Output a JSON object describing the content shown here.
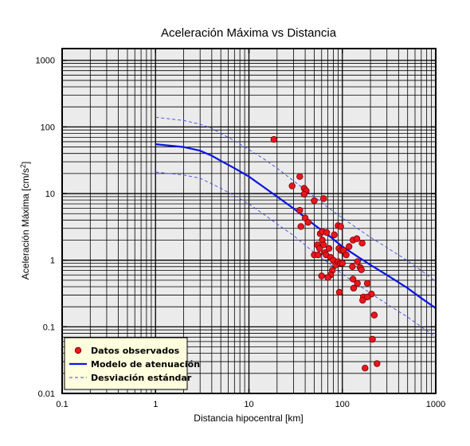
{
  "chart_data": {
    "type": "scatter",
    "title": "Aceleración Máxima vs Distancia",
    "xlabel": "Distancia hipocentral [km]",
    "ylabel_main": "Aceleración Máxima [cm/s",
    "ylabel_sup": "2",
    "ylabel_end": "]",
    "x_scale": "log",
    "y_scale": "log",
    "xlim": [
      0.1,
      1000
    ],
    "ylim": [
      0.01,
      1500
    ],
    "grid": true,
    "x_ticks": [
      {
        "value": 0.1,
        "label": "0.1"
      },
      {
        "value": 1,
        "label": "1"
      },
      {
        "value": 10,
        "label": "10"
      },
      {
        "value": 100,
        "label": "100"
      },
      {
        "value": 1000,
        "label": "1000"
      }
    ],
    "y_ticks": [
      {
        "value": 0.01,
        "label": "0.01"
      },
      {
        "value": 0.1,
        "label": "0.1"
      },
      {
        "value": 1,
        "label": "1"
      },
      {
        "value": 10,
        "label": "10"
      },
      {
        "value": 100,
        "label": "100"
      },
      {
        "value": 1000,
        "label": "1000"
      }
    ],
    "legend_position": "bottom-left",
    "colors": {
      "plot_background": "#ebebeb",
      "legend_background": "#ffffdd",
      "points": "#e8161e",
      "model": "#0a14e6",
      "deviation": "#3a4ae8"
    },
    "series": [
      {
        "name": "Datos observados",
        "kind": "points",
        "points": [
          [
            18.5,
            65
          ],
          [
            29,
            13
          ],
          [
            35,
            18
          ],
          [
            39,
            12
          ],
          [
            41,
            11
          ],
          [
            39,
            9.8
          ],
          [
            40,
            4.3
          ],
          [
            43,
            3.7
          ],
          [
            36,
            3.2
          ],
          [
            35,
            5.6
          ],
          [
            50,
            7.8
          ],
          [
            63,
            8.4
          ],
          [
            58,
            2.5
          ],
          [
            61,
            2.7
          ],
          [
            68,
            2.6
          ],
          [
            61,
            2.0
          ],
          [
            50,
            1.2
          ],
          [
            54,
            1.7
          ],
          [
            57,
            1.5
          ],
          [
            55,
            1.2
          ],
          [
            63,
            1.7
          ],
          [
            65,
            1.3
          ],
          [
            72,
            1.5
          ],
          [
            67,
            1.2
          ],
          [
            75,
            1.1
          ],
          [
            82,
            2.4
          ],
          [
            90,
            3.3
          ],
          [
            96,
            3.2
          ],
          [
            92,
            1.5
          ],
          [
            97,
            1.4
          ],
          [
            103,
            1.4
          ],
          [
            110,
            1.2
          ],
          [
            118,
            1.6
          ],
          [
            130,
            2.0
          ],
          [
            143,
            2.1
          ],
          [
            163,
            1.8
          ],
          [
            80,
            1.0
          ],
          [
            85,
            0.85
          ],
          [
            90,
            0.95
          ],
          [
            95,
            0.9
          ],
          [
            100,
            0.9
          ],
          [
            78,
            0.7
          ],
          [
            75,
            0.6
          ],
          [
            70,
            0.55
          ],
          [
            60,
            0.58
          ],
          [
            128,
            0.8
          ],
          [
            145,
            0.95
          ],
          [
            155,
            0.78
          ],
          [
            160,
            0.72
          ],
          [
            130,
            0.52
          ],
          [
            145,
            0.45
          ],
          [
            132,
            0.38
          ],
          [
            185,
            0.45
          ],
          [
            93,
            0.33
          ],
          [
            205,
            0.31
          ],
          [
            168,
            0.28
          ],
          [
            185,
            0.28
          ],
          [
            165,
            0.25
          ],
          [
            220,
            0.15
          ],
          [
            210,
            0.065
          ],
          [
            235,
            0.028
          ],
          [
            175,
            0.024
          ]
        ]
      },
      {
        "name": "Modelo de atenuación",
        "kind": "line",
        "style": "solid",
        "x": [
          1,
          2,
          3,
          4,
          5,
          7,
          10,
          15,
          20,
          30,
          50,
          70,
          100,
          150,
          200,
          300,
          500,
          700,
          1000
        ],
        "y": [
          55,
          50,
          44,
          37,
          31,
          24,
          18,
          12,
          9,
          6,
          3.4,
          2.4,
          1.6,
          1.1,
          0.85,
          0.6,
          0.38,
          0.27,
          0.19
        ]
      },
      {
        "name": "Desviación estándar",
        "kind": "line",
        "style": "dashed",
        "x": [
          1,
          2,
          3,
          4,
          5,
          7,
          10,
          15,
          20,
          30,
          50,
          70,
          100,
          150,
          200,
          300,
          500,
          700,
          1000
        ],
        "y": [
          140,
          125,
          110,
          95,
          80,
          62,
          46,
          32,
          24,
          15.5,
          9,
          6.2,
          4.3,
          2.9,
          2.2,
          1.55,
          0.98,
          0.7,
          0.48
        ]
      },
      {
        "name": "Desviación estándar (inferior)",
        "kind": "line",
        "style": "dashed",
        "legend": false,
        "x": [
          1,
          2,
          3,
          4,
          5,
          7,
          10,
          15,
          20,
          30,
          50,
          70,
          100,
          150,
          200,
          300,
          500,
          700,
          1000
        ],
        "y": [
          21,
          19,
          17,
          14,
          12,
          9.3,
          7,
          4.7,
          3.5,
          2.35,
          1.3,
          0.92,
          0.62,
          0.42,
          0.32,
          0.22,
          0.14,
          0.1,
          0.07
        ]
      }
    ]
  }
}
